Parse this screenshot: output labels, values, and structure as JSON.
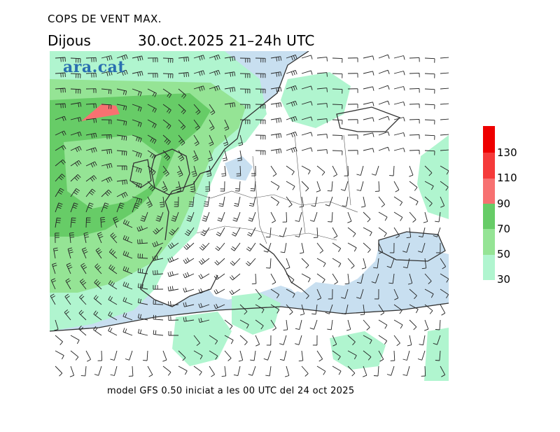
{
  "header": {
    "title": "COPS DE VENT MAX.",
    "day": "Dijous",
    "datetime": "30.oct.2025 21–24h UTC"
  },
  "logo": {
    "text": "ara.cat"
  },
  "footer": {
    "text": "model GFS 0.50 iniciat a les 00 UTC del 24 oct 2025"
  },
  "legend": {
    "labels": [
      "130",
      "110",
      "90",
      "70",
      "50",
      "30"
    ],
    "colors": [
      "#ee0000",
      "#f53a3a",
      "#f77171",
      "#67cc67",
      "#95e495",
      "#b0f5cf"
    ]
  },
  "colors": {
    "sea": "#c8dff0",
    "land": "#ffffff",
    "wind_30_50": "#b0f5cf",
    "wind_50_70": "#95e495",
    "wind_70_90": "#67cc67",
    "wind_110_plus": "#f77171",
    "coastline": "#333333",
    "barbs": "#222222"
  }
}
